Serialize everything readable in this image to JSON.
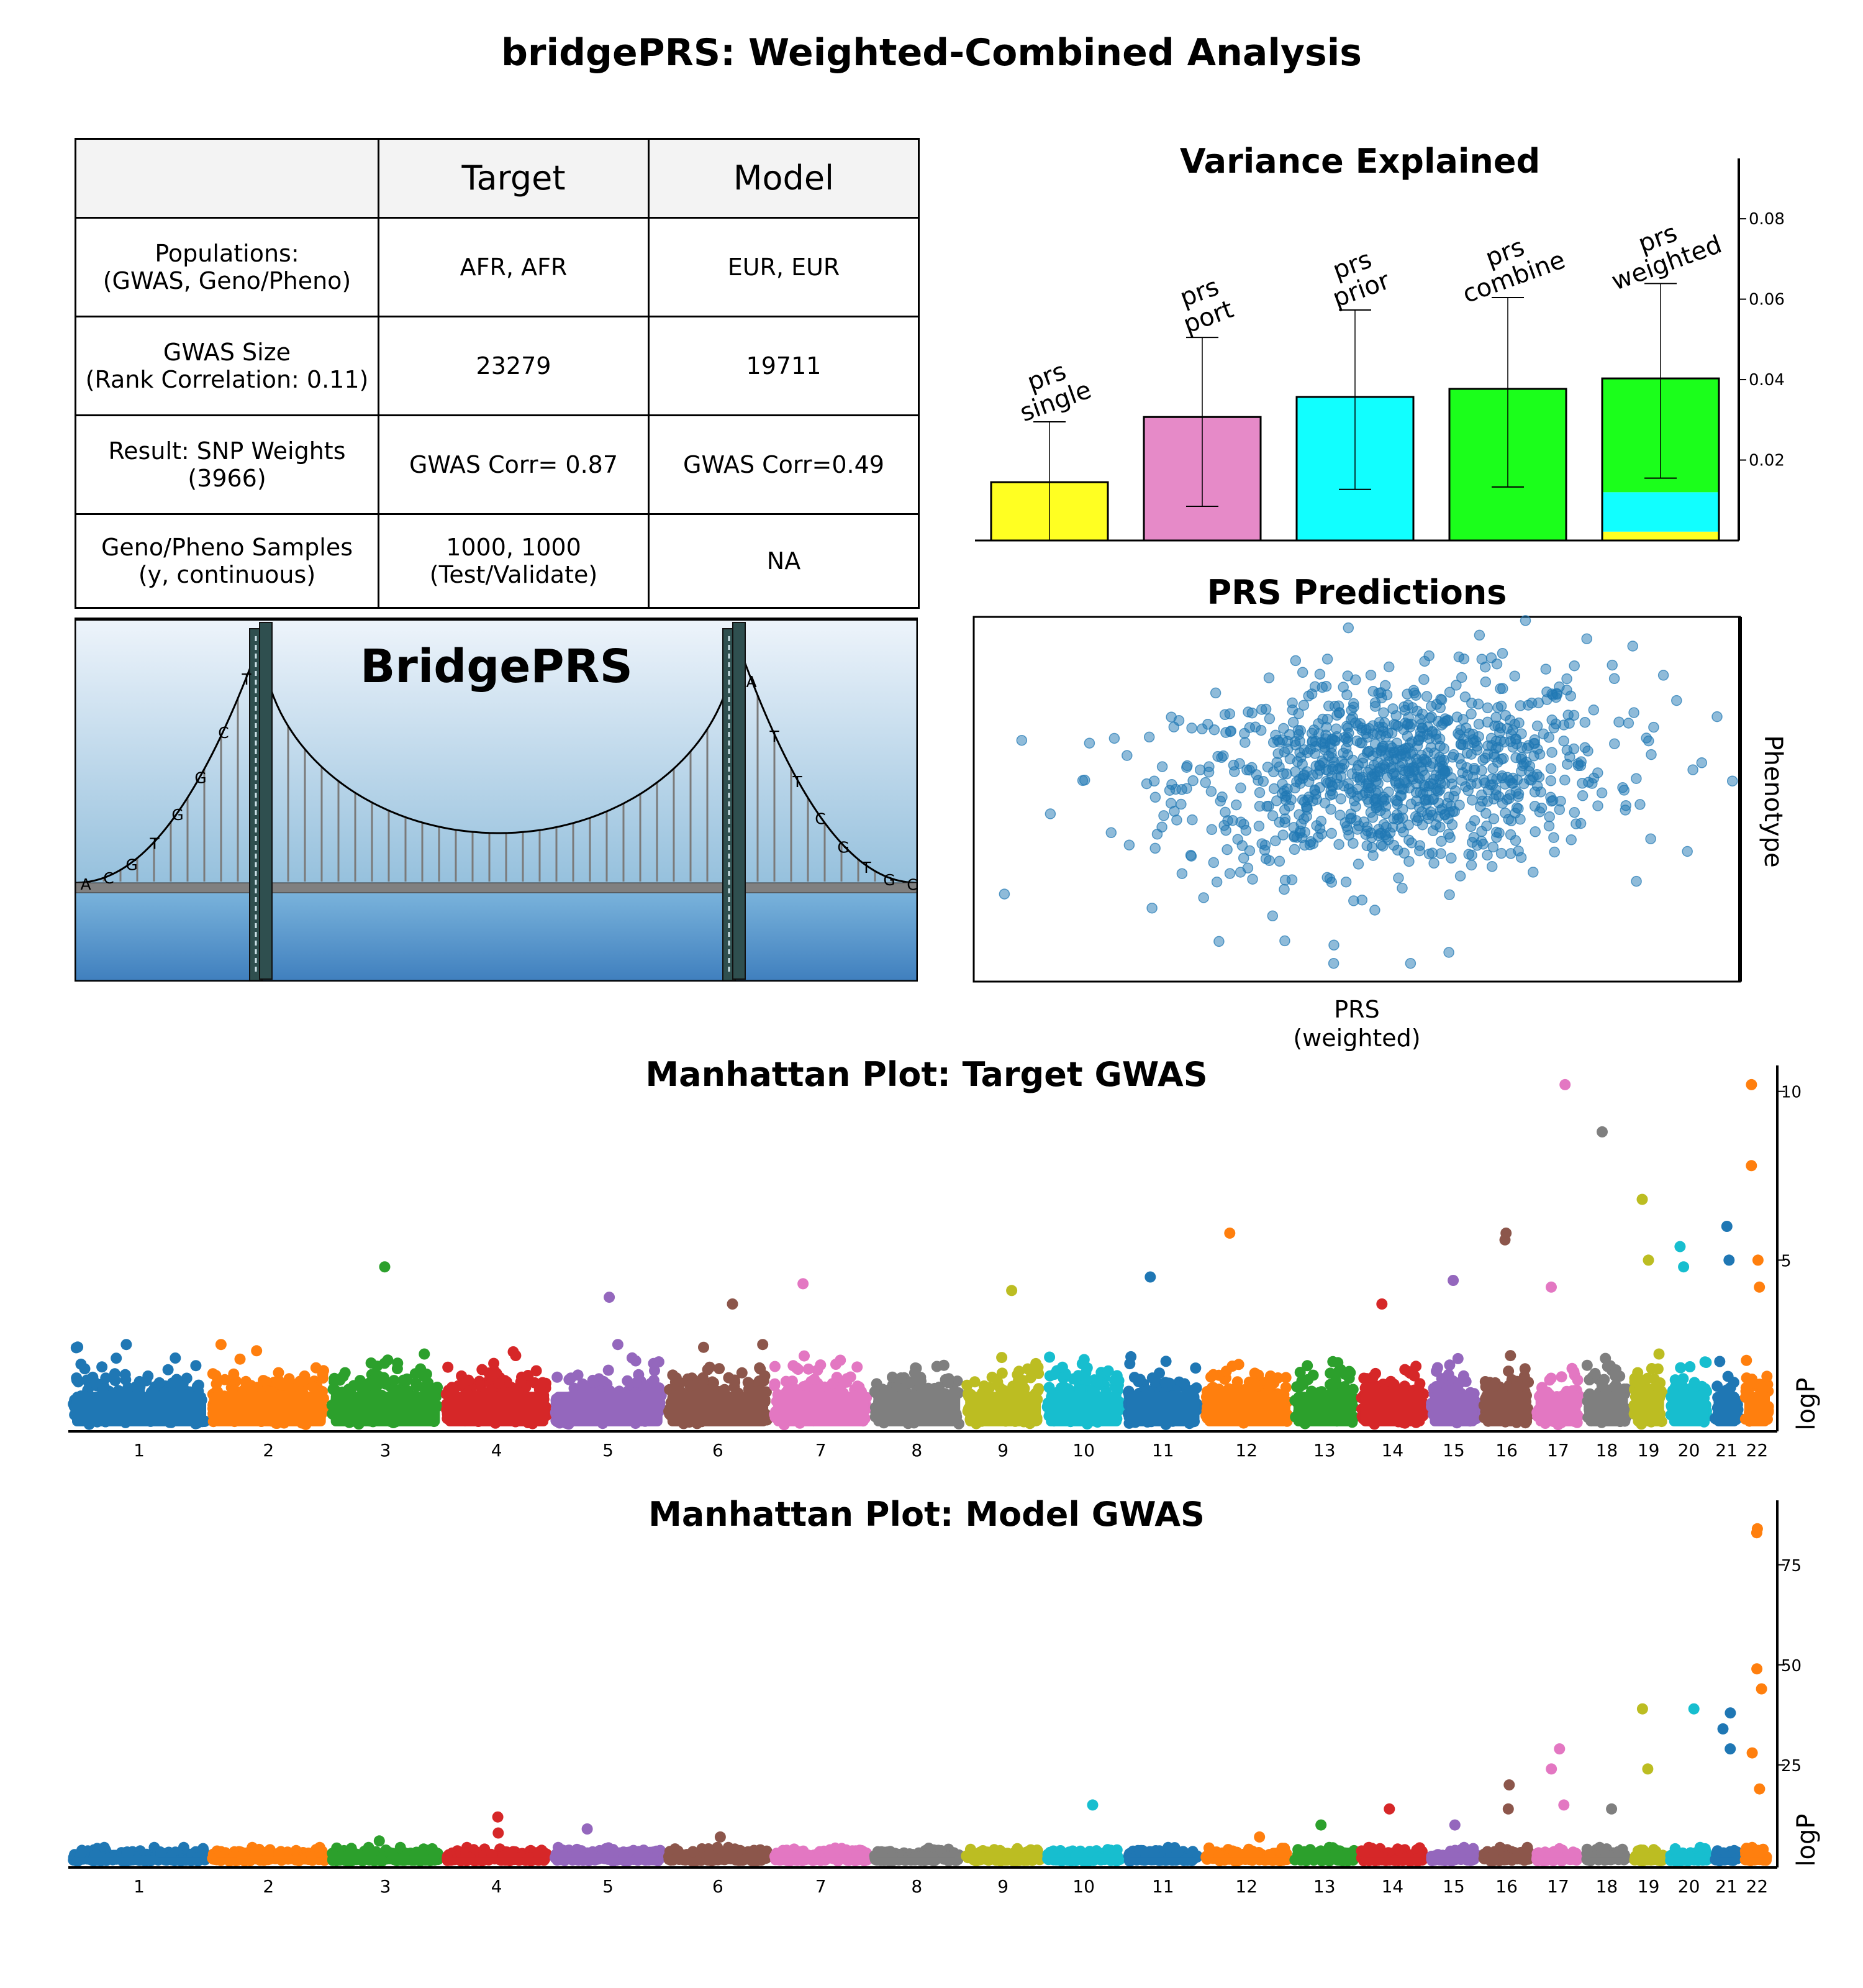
{
  "title": "bridgePRS: Weighted-Combined Analysis",
  "table": {
    "headers": [
      "",
      "Target",
      "Model"
    ],
    "rows": [
      {
        "label": "Populations:\n(GWAS, Geno/Pheno)",
        "target": "AFR, AFR",
        "model": "EUR, EUR"
      },
      {
        "label": "GWAS Size\n(Rank Correlation: 0.11)",
        "target": "23279",
        "model": "19711"
      },
      {
        "label": "Result: SNP Weights\n(3966)",
        "target": "GWAS Corr= 0.87",
        "model": "GWAS Corr=0.49"
      },
      {
        "label": "Geno/Pheno Samples\n(y, continuous)",
        "target": "1000, 1000\n(Test/Validate)",
        "model": "NA"
      }
    ]
  },
  "bridge": {
    "title": "BridgePRS",
    "left_letters": [
      "A",
      "C",
      "G",
      "T",
      "G",
      "G",
      "C",
      "T"
    ],
    "right_letters": [
      "A",
      "T",
      "T",
      "C",
      "G",
      "T",
      "G",
      "C"
    ],
    "colors": {
      "sky_top": "#eef4fb",
      "sky_bottom": "#93bfdc",
      "water_top": "#7bb4dc",
      "water_bottom": "#3f7fbe",
      "deck": "#808080",
      "tower": "#2f4f4f"
    }
  },
  "chart_data": [
    {
      "type": "bar",
      "title": "Variance Explained",
      "categories": [
        "prs\nsingle",
        "prs\nport",
        "prs\nprior",
        "prs\ncombine",
        "prs\nweighted"
      ],
      "values": [
        0.0145,
        0.0307,
        0.0357,
        0.0377,
        0.0403
      ],
      "error_low": [
        0.0,
        0.0085,
        0.0127,
        0.0133,
        0.0155
      ],
      "error_high": [
        0.0295,
        0.0505,
        0.0573,
        0.0604,
        0.0639
      ],
      "bar_colors": [
        "#ffff22",
        "#e68ac8",
        "#11ffff",
        "#1bff1b",
        "#1bff1b"
      ],
      "stacked_last": [
        {
          "color": "#ffff22",
          "value": 0.0022
        },
        {
          "color": "#11ffff",
          "value": 0.0098
        },
        {
          "color": "#1bff1b",
          "value": 0.0283
        }
      ],
      "ylim": [
        0,
        0.095
      ],
      "yticks": [
        0.02,
        0.04,
        0.06,
        0.08
      ],
      "ytick_labels": [
        "0.02",
        "0.04",
        "0.06",
        "0.08"
      ],
      "axis_side": "right"
    },
    {
      "type": "scatter",
      "title": "PRS Predictions",
      "xlabel": "PRS\n(weighted)",
      "ylabel": "Phenotype",
      "n_points": 1000,
      "point_color": "#1f77b4",
      "center": [
        0.55,
        0.57
      ],
      "spread": [
        0.14,
        0.13
      ],
      "x": [
        0.04,
        0.1,
        0.2,
        0.3,
        0.42,
        0.55,
        0.69,
        0.8,
        0.9,
        0.95,
        0.99,
        0.32,
        0.39,
        0.47,
        0.57,
        0.62,
        0.66,
        0.72,
        0.86,
        0.73
      ],
      "y": [
        0.24,
        0.46,
        0.62,
        0.23,
        0.88,
        0.55,
        0.9,
        0.94,
        0.84,
        0.6,
        0.55,
        0.11,
        0.18,
        0.1,
        0.05,
        0.08,
        0.95,
        0.99,
        0.92,
        0.3
      ],
      "ylim": [
        0,
        1
      ],
      "xlim": [
        0,
        1
      ]
    },
    {
      "type": "scatter",
      "title": "Manhattan Plot: Target GWAS",
      "ylabel": "logP",
      "xlabel": "",
      "ylim": [
        0,
        10.4
      ],
      "yticks": [
        5,
        10
      ],
      "ytick_labels": [
        "5",
        "10"
      ],
      "chromosomes": [
        "1",
        "2",
        "3",
        "4",
        "5",
        "6",
        "7",
        "8",
        "9",
        "10",
        "11",
        "12",
        "13",
        "14",
        "15",
        "16",
        "17",
        "18",
        "19",
        "20",
        "21",
        "22"
      ],
      "chrom_widths": [
        1.0,
        0.86,
        0.82,
        0.78,
        0.82,
        0.76,
        0.72,
        0.66,
        0.58,
        0.58,
        0.56,
        0.64,
        0.48,
        0.5,
        0.38,
        0.38,
        0.36,
        0.34,
        0.26,
        0.32,
        0.22,
        0.22
      ],
      "colors": [
        "#1f77b4",
        "#ff7f0e",
        "#2ca02c",
        "#d62728",
        "#9467bd",
        "#8c564b",
        "#e377c2",
        "#7f7f7f",
        "#bcbd22",
        "#17becf"
      ],
      "base_height": 2.0,
      "peaks": [
        {
          "chrom": 3,
          "value": 4.8
        },
        {
          "chrom": 5,
          "value": 3.9
        },
        {
          "chrom": 6,
          "value": 3.7
        },
        {
          "chrom": 7,
          "value": 4.3
        },
        {
          "chrom": 9,
          "value": 4.1
        },
        {
          "chrom": 11,
          "value": 4.5
        },
        {
          "chrom": 12,
          "value": 5.8
        },
        {
          "chrom": 14,
          "value": 3.7
        },
        {
          "chrom": 15,
          "value": 4.4
        },
        {
          "chrom": 16,
          "value": 5.6
        },
        {
          "chrom": 16,
          "value": 5.8
        },
        {
          "chrom": 17,
          "value": 10.2
        },
        {
          "chrom": 17,
          "value": 4.2
        },
        {
          "chrom": 18,
          "value": 8.8
        },
        {
          "chrom": 19,
          "value": 6.8
        },
        {
          "chrom": 19,
          "value": 5.0
        },
        {
          "chrom": 20,
          "value": 5.4
        },
        {
          "chrom": 20,
          "value": 4.8
        },
        {
          "chrom": 21,
          "value": 6.0
        },
        {
          "chrom": 21,
          "value": 5.0
        },
        {
          "chrom": 22,
          "value": 10.2
        },
        {
          "chrom": 22,
          "value": 7.8
        },
        {
          "chrom": 22,
          "value": 5.0
        },
        {
          "chrom": 22,
          "value": 4.2
        }
      ]
    },
    {
      "type": "scatter",
      "title": "Manhattan Plot: Model GWAS",
      "ylabel": "logP",
      "xlabel": "",
      "ylim": [
        0,
        88
      ],
      "yticks": [
        25,
        50,
        75
      ],
      "ytick_labels": [
        "25",
        "50",
        "75"
      ],
      "chromosomes": [
        "1",
        "2",
        "3",
        "4",
        "5",
        "6",
        "7",
        "8",
        "9",
        "10",
        "11",
        "12",
        "13",
        "14",
        "15",
        "16",
        "17",
        "18",
        "19",
        "20",
        "21",
        "22"
      ],
      "chrom_widths": [
        1.0,
        0.86,
        0.82,
        0.78,
        0.82,
        0.76,
        0.72,
        0.66,
        0.58,
        0.58,
        0.56,
        0.64,
        0.48,
        0.5,
        0.38,
        0.38,
        0.36,
        0.34,
        0.26,
        0.32,
        0.22,
        0.22
      ],
      "colors": [
        "#1f77b4",
        "#ff7f0e",
        "#2ca02c",
        "#d62728",
        "#9467bd",
        "#8c564b",
        "#e377c2",
        "#7f7f7f",
        "#bcbd22",
        "#17becf"
      ],
      "base_height": 3.5,
      "peaks": [
        {
          "chrom": 3,
          "value": 6
        },
        {
          "chrom": 4,
          "value": 12
        },
        {
          "chrom": 4,
          "value": 8
        },
        {
          "chrom": 5,
          "value": 9
        },
        {
          "chrom": 6,
          "value": 7
        },
        {
          "chrom": 10,
          "value": 15
        },
        {
          "chrom": 12,
          "value": 7
        },
        {
          "chrom": 13,
          "value": 10
        },
        {
          "chrom": 14,
          "value": 14
        },
        {
          "chrom": 15,
          "value": 10
        },
        {
          "chrom": 16,
          "value": 20
        },
        {
          "chrom": 16,
          "value": 14
        },
        {
          "chrom": 17,
          "value": 24
        },
        {
          "chrom": 17,
          "value": 29
        },
        {
          "chrom": 17,
          "value": 15
        },
        {
          "chrom": 18,
          "value": 14
        },
        {
          "chrom": 19,
          "value": 39
        },
        {
          "chrom": 19,
          "value": 24
        },
        {
          "chrom": 20,
          "value": 39
        },
        {
          "chrom": 21,
          "value": 38
        },
        {
          "chrom": 21,
          "value": 34
        },
        {
          "chrom": 21,
          "value": 29
        },
        {
          "chrom": 22,
          "value": 84
        },
        {
          "chrom": 22,
          "value": 83
        },
        {
          "chrom": 22,
          "value": 49
        },
        {
          "chrom": 22,
          "value": 44
        },
        {
          "chrom": 22,
          "value": 28
        },
        {
          "chrom": 22,
          "value": 19
        }
      ]
    }
  ]
}
